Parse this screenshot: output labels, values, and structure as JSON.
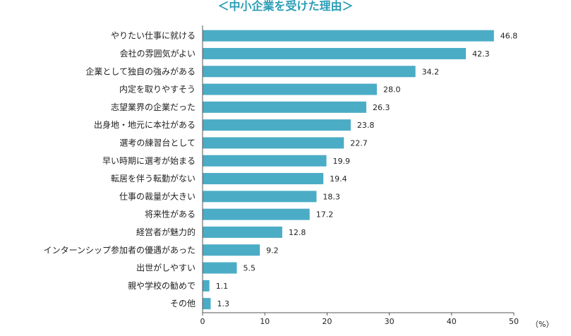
{
  "chart_data": {
    "type": "bar",
    "orientation": "horizontal",
    "title": "＜中小企業を受けた理由＞",
    "categories": [
      "やりたい仕事に就ける",
      "会社の雰囲気がよい",
      "企業として独自の強みがある",
      "内定を取りやすそう",
      "志望業界の企業だった",
      "出身地・地元に本社がある",
      "選考の練習台として",
      "早い時期に選考が始まる",
      "転居を伴う転勤がない",
      "仕事の裁量が大きい",
      "将来性がある",
      "経営者が魅力的",
      "インターンシップ参加者の優遇があった",
      "出世がしやすい",
      "親や学校の勧めで",
      "その他"
    ],
    "values": [
      46.8,
      42.3,
      34.2,
      28.0,
      26.3,
      23.8,
      22.7,
      19.9,
      19.4,
      18.3,
      17.2,
      12.8,
      9.2,
      5.5,
      1.1,
      1.3
    ],
    "value_labels": [
      "46.8",
      "42.3",
      "34.2",
      "28.0",
      "26.3",
      "23.8",
      "22.7",
      "19.9",
      "19.4",
      "18.3",
      "17.2",
      "12.8",
      "9.2",
      "5.5",
      "1.1",
      "1.3"
    ],
    "x_ticks": [
      "0",
      "10",
      "20",
      "30",
      "40",
      "50"
    ],
    "xlim": [
      0,
      50
    ],
    "unit_label": "（%）",
    "grid": false,
    "bar_color": "#4bacc6",
    "title_color": "#2a9db5"
  }
}
